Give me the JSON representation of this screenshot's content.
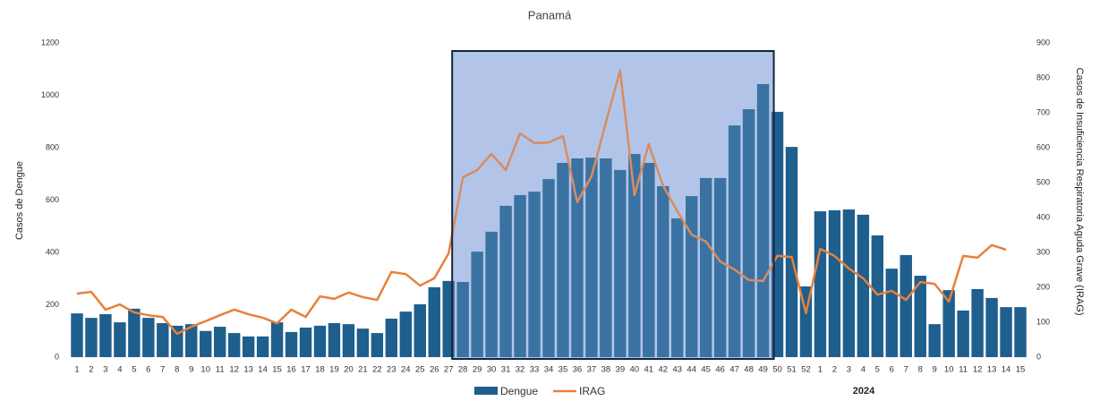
{
  "chart_data": {
    "type": "bar_line",
    "title": "Panamá",
    "y_label": "Casos de Dengue",
    "y2_label": "Casos de Insuficiencia Respiratoria Aguda Grave (IRAG)",
    "annotation": "2024",
    "categories": [
      "1",
      "2",
      "3",
      "4",
      "5",
      "6",
      "7",
      "8",
      "9",
      "10",
      "11",
      "12",
      "13",
      "14",
      "15",
      "16",
      "17",
      "18",
      "19",
      "20",
      "21",
      "22",
      "23",
      "24",
      "25",
      "26",
      "27",
      "28",
      "29",
      "30",
      "31",
      "32",
      "33",
      "34",
      "35",
      "36",
      "37",
      "38",
      "39",
      "40",
      "41",
      "42",
      "43",
      "44",
      "45",
      "46",
      "47",
      "48",
      "49",
      "50",
      "51",
      "52",
      "1",
      "2",
      "3",
      "4",
      "5",
      "6",
      "7",
      "8",
      "9",
      "10",
      "11",
      "12",
      "13",
      "14",
      "15"
    ],
    "series": [
      {
        "name": "Dengue",
        "type": "bar",
        "color": "#1e5f8e",
        "values": [
          167,
          150,
          164,
          133,
          185,
          150,
          130,
          120,
          126,
          100,
          116,
          92,
          79,
          79,
          133,
          96,
          113,
          120,
          130,
          126,
          109,
          92,
          147,
          174,
          202,
          267,
          291,
          287,
          403,
          479,
          578,
          619,
          632,
          680,
          742,
          759,
          762,
          759,
          715,
          776,
          742,
          653,
          530,
          615,
          684,
          684,
          885,
          947,
          1043,
          937,
          803,
          270,
          557,
          561,
          564,
          544,
          465,
          338,
          390,
          311,
          126,
          256,
          178,
          260,
          226,
          191,
          191
        ]
      },
      {
        "name": "IRAG",
        "type": "line",
        "axis": "y2",
        "color": "#e8803a",
        "values": [
          182,
          187,
          136,
          151,
          128,
          120,
          115,
          67,
          87,
          103,
          120,
          136,
          123,
          113,
          97,
          136,
          115,
          174,
          167,
          185,
          172,
          164,
          244,
          238,
          205,
          226,
          297,
          515,
          536,
          582,
          536,
          641,
          613,
          615,
          633,
          444,
          518,
          672,
          821,
          464,
          610,
          492,
          418,
          351,
          331,
          274,
          251,
          221,
          218,
          290,
          287,
          126,
          310,
          290,
          254,
          226,
          179,
          190,
          164,
          215,
          210,
          159,
          290,
          285,
          321,
          308,
          null
        ]
      }
    ],
    "highlight": {
      "start": 27,
      "end": 48
    },
    "ylim": [
      0,
      1200
    ],
    "yticks": [
      0,
      200,
      400,
      600,
      800,
      1000,
      1200
    ],
    "y2lim": [
      0,
      900
    ],
    "y2ticks": [
      0,
      100,
      200,
      300,
      400,
      500,
      600,
      700,
      800,
      900
    ],
    "grid": false,
    "legend": "bottom"
  }
}
